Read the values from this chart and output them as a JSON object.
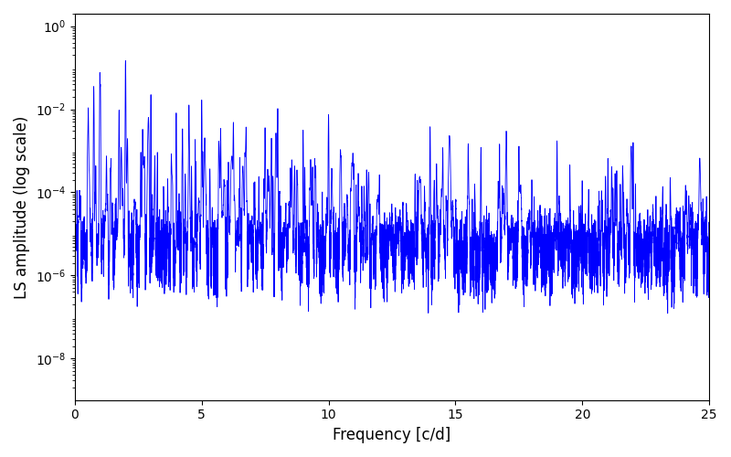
{
  "title": "",
  "xlabel": "Frequency [c/d]",
  "ylabel": "LS amplitude (log scale)",
  "xlim": [
    0,
    25
  ],
  "ylim": [
    1e-09,
    2
  ],
  "ymin": 1e-09,
  "ymax": 2,
  "line_color": "#0000ff",
  "line_width": 0.6,
  "freq_max": 25.0,
  "n_points": 15000,
  "seed": 137,
  "background_color": "#ffffff",
  "figsize": [
    8.0,
    5.0
  ],
  "dpi": 100
}
